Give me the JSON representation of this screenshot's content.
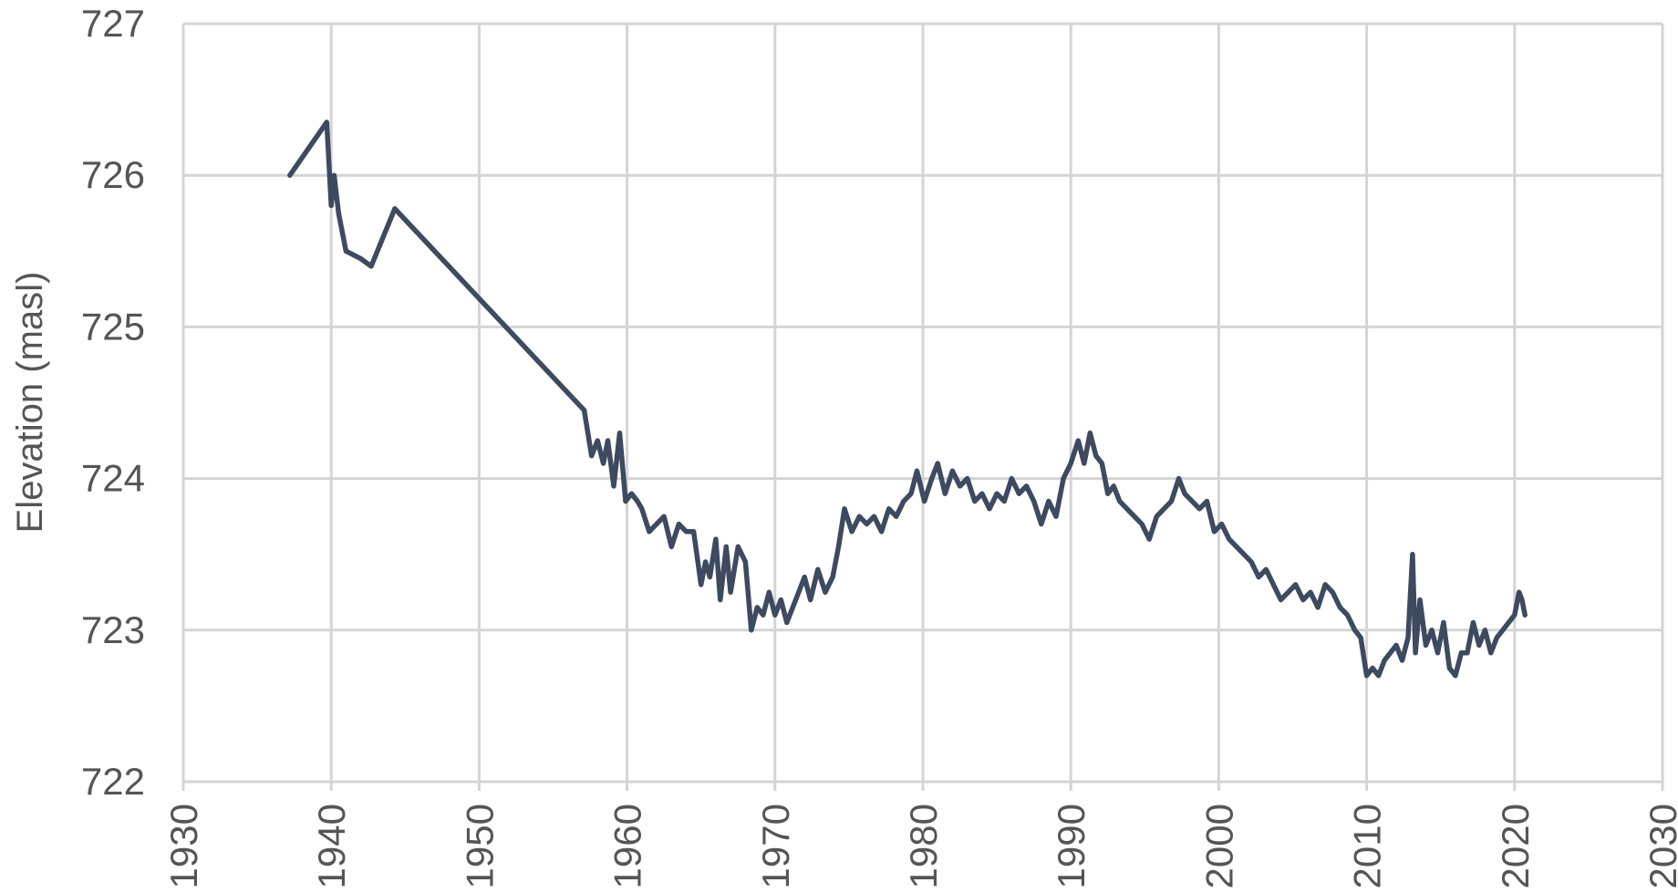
{
  "chart_data": {
    "type": "line",
    "title": "",
    "xlabel": "",
    "ylabel": "Elevation (masl)",
    "xlim": [
      1930,
      2030
    ],
    "ylim": [
      722,
      727
    ],
    "x_ticks": [
      "1930",
      "1940",
      "1950",
      "1960",
      "1970",
      "1980",
      "1990",
      "2000",
      "2010",
      "2020",
      "2030"
    ],
    "y_ticks": [
      "722",
      "723",
      "724",
      "725",
      "726",
      "727"
    ],
    "grid": true,
    "legend": "none",
    "line_color": "#3d4a60",
    "series": [
      {
        "x": [
          1937.2,
          1939.7,
          1940.0,
          1940.2,
          1940.5,
          1941.0,
          1942.0,
          1942.7,
          1944.3,
          1957.1,
          1957.6,
          1958.0,
          1958.4,
          1958.7,
          1959.1,
          1959.5,
          1959.9,
          1960.3,
          1960.7,
          1961.0,
          1961.5,
          1962.0,
          1962.5,
          1963.0,
          1963.5,
          1964.0,
          1964.5,
          1965.0,
          1965.3,
          1965.6,
          1966.0,
          1966.3,
          1966.7,
          1967.0,
          1967.5,
          1968.0,
          1968.4,
          1968.8,
          1969.2,
          1969.6,
          1970.0,
          1970.4,
          1970.8,
          1971.2,
          1971.6,
          1972.0,
          1972.4,
          1972.9,
          1973.4,
          1973.9,
          1974.3,
          1974.7,
          1975.2,
          1975.7,
          1976.2,
          1976.7,
          1977.2,
          1977.7,
          1978.2,
          1978.7,
          1979.2,
          1979.6,
          1980.1,
          1980.6,
          1981.0,
          1981.5,
          1982.0,
          1982.5,
          1983.0,
          1983.5,
          1984.0,
          1984.5,
          1985.0,
          1985.5,
          1986.0,
          1986.5,
          1987.0,
          1987.5,
          1988.0,
          1988.5,
          1989.0,
          1989.5,
          1990.0,
          1990.5,
          1990.9,
          1991.3,
          1991.7,
          1992.1,
          1992.5,
          1992.9,
          1993.3,
          1993.8,
          1994.3,
          1994.8,
          1995.3,
          1995.8,
          1996.3,
          1996.8,
          1997.3,
          1997.7,
          1998.2,
          1998.7,
          1999.2,
          1999.7,
          2000.2,
          2000.7,
          2001.2,
          2001.7,
          2002.2,
          2002.7,
          2003.2,
          2003.7,
          2004.2,
          2004.7,
          2005.2,
          2005.7,
          2006.2,
          2006.7,
          2007.2,
          2007.7,
          2008.2,
          2008.7,
          2009.2,
          2009.6,
          2010.0,
          2010.4,
          2010.8,
          2011.2,
          2011.6,
          2012.0,
          2012.4,
          2012.8,
          2013.1,
          2013.3,
          2013.6,
          2014.0,
          2014.4,
          2014.8,
          2015.2,
          2015.6,
          2016.0,
          2016.4,
          2016.8,
          2017.2,
          2017.6,
          2018.0,
          2018.4,
          2018.8,
          2019.2,
          2019.6,
          2020.0,
          2020.3,
          2020.5,
          2020.7
        ],
        "y": [
          726.0,
          726.35,
          725.8,
          726.0,
          725.75,
          725.5,
          725.45,
          725.4,
          725.78,
          724.45,
          724.15,
          724.25,
          724.1,
          724.25,
          723.95,
          724.3,
          723.85,
          723.9,
          723.85,
          723.8,
          723.65,
          723.7,
          723.75,
          723.55,
          723.7,
          723.65,
          723.65,
          723.3,
          723.45,
          723.35,
          723.6,
          723.2,
          723.55,
          723.25,
          723.55,
          723.45,
          723.0,
          723.15,
          723.1,
          723.25,
          723.1,
          723.2,
          723.05,
          723.15,
          723.25,
          723.35,
          723.2,
          723.4,
          723.25,
          723.35,
          723.55,
          723.8,
          723.65,
          723.75,
          723.7,
          723.75,
          723.65,
          723.8,
          723.75,
          723.85,
          723.9,
          724.05,
          723.85,
          724.0,
          724.1,
          723.9,
          724.05,
          723.95,
          724.0,
          723.85,
          723.9,
          723.8,
          723.9,
          723.85,
          724.0,
          723.9,
          723.95,
          723.85,
          723.7,
          723.85,
          723.75,
          724.0,
          724.1,
          724.25,
          724.1,
          724.3,
          724.15,
          724.1,
          723.9,
          723.95,
          723.85,
          723.8,
          723.75,
          723.7,
          723.6,
          723.75,
          723.8,
          723.85,
          724.0,
          723.9,
          723.85,
          723.8,
          723.85,
          723.65,
          723.7,
          723.6,
          723.55,
          723.5,
          723.45,
          723.35,
          723.4,
          723.3,
          723.2,
          723.25,
          723.3,
          723.2,
          723.25,
          723.15,
          723.3,
          723.25,
          723.15,
          723.1,
          723.0,
          722.95,
          722.7,
          722.75,
          722.7,
          722.8,
          722.85,
          722.9,
          722.8,
          722.95,
          723.5,
          722.85,
          723.2,
          722.9,
          723.0,
          722.85,
          723.05,
          722.75,
          722.7,
          722.85,
          722.85,
          723.05,
          722.9,
          723.0,
          722.85,
          722.95,
          723.0,
          723.05,
          723.1,
          723.25,
          723.2,
          723.1
        ]
      }
    ]
  }
}
